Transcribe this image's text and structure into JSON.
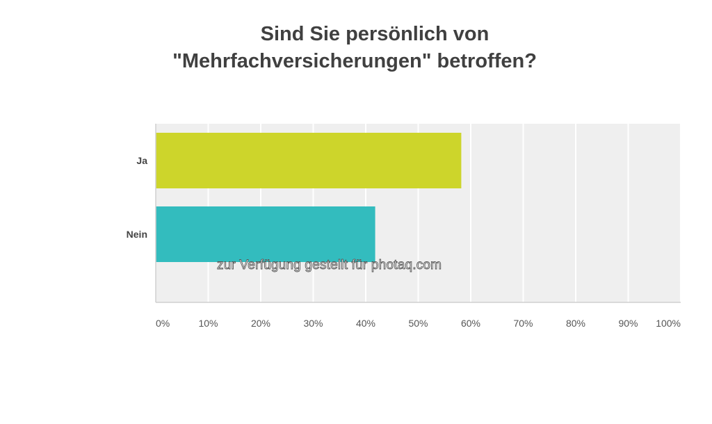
{
  "chart_data": {
    "type": "bar",
    "orientation": "horizontal",
    "title": [
      "Sind Sie persönlich von",
      "\"Mehrfachversicherungen\" betroffen?"
    ],
    "categories": [
      "Ja",
      "Nein"
    ],
    "values": [
      58.2,
      41.8
    ],
    "value_unit": "%",
    "xlim": [
      0,
      100
    ],
    "x_ticks": [
      "0%",
      "10%",
      "20%",
      "30%",
      "40%",
      "50%",
      "60%",
      "70%",
      "80%",
      "90%",
      "100%"
    ],
    "colors": [
      "#cdd52b",
      "#33bcbe"
    ],
    "plot_background": "#efefef",
    "grid": true,
    "legend": "none"
  },
  "watermark": "zur Verfügung gestellt für photaq.com"
}
